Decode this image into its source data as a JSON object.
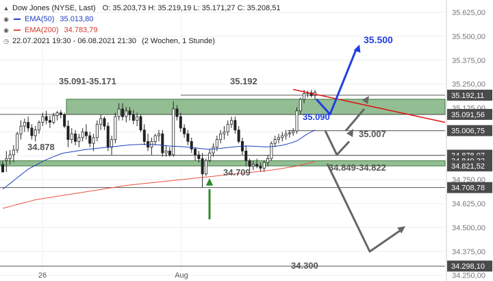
{
  "header": {
    "instrument_label": "Dow Jones (NYSE, Last)",
    "ohlc_label": "O: 35.203,73  H: 35.219,19  L: 35.171,27  C: 35.208,51",
    "ema50_label": "EMA(50)",
    "ema50_value": "35.013,80",
    "ema200_label": "EMA(200)",
    "ema200_value": "34.783,79",
    "range_label": "22.07.2021 19:30 - 06.08.2021 21:30",
    "period_label": "(2 Wochen, 1 Stunde)"
  },
  "colors": {
    "ema50": "#1f3fbf",
    "ema200": "#e8513f",
    "zone_fill": "#6fa86f",
    "trend_line": "#e01010",
    "forecast_up": "#1f3fe0",
    "forecast_grey": "#666666",
    "arrow_green": "#2e8b2e"
  },
  "chart_data": {
    "type": "candlestick",
    "x_tick_labels": [
      "26",
      "Aug"
    ],
    "y_tick_labels": [
      "35.625,00",
      "35.500,00",
      "35.375,00",
      "35.250,00",
      "35.125,00",
      "35.000,00",
      "34.875,00",
      "34.750,00",
      "34.625,00",
      "34.500,00",
      "34.375,00",
      "34.250,00"
    ],
    "y_range": [
      34220,
      35690
    ],
    "price_tags": [
      {
        "value": 35192.11,
        "text": "35.192,11"
      },
      {
        "value": 35091.56,
        "text": "35.091,56"
      },
      {
        "value": 35006.75,
        "text": "35.006,75"
      },
      {
        "value": 34878.07,
        "text": "34.878,07"
      },
      {
        "value": 34849,
        "text": "34.849,32"
      },
      {
        "value": 34822,
        "text": "34.821,52"
      },
      {
        "value": 34708.78,
        "text": "34.708,78"
      },
      {
        "value": 34298.1,
        "text": "34.298,10"
      }
    ],
    "zones": [
      {
        "label": "35.091-35.171",
        "low": 35091,
        "high": 35171
      },
      {
        "label": "34.849-34.822",
        "low": 34822,
        "high": 34849
      }
    ],
    "level_labels": [
      "35.192",
      "34.878",
      "34.709",
      "35.090",
      "35.007",
      "35.500",
      "34.300"
    ],
    "candles": [
      [
        34830,
        34850,
        34800,
        34790
      ],
      [
        34850,
        34900,
        34790,
        34860
      ],
      [
        34860,
        34905,
        34830,
        34880
      ],
      [
        34880,
        34930,
        34840,
        34905
      ],
      [
        34905,
        35000,
        34890,
        34990
      ],
      [
        34990,
        35060,
        34960,
        35030
      ],
      [
        35030,
        35070,
        35000,
        35050
      ],
      [
        35050,
        35080,
        35000,
        35020
      ],
      [
        35020,
        35040,
        34960,
        34980
      ],
      [
        34980,
        35030,
        34950,
        35010
      ],
      [
        35010,
        35060,
        34990,
        35050
      ],
      [
        35050,
        35100,
        35030,
        35080
      ],
      [
        35080,
        35110,
        35040,
        35060
      ],
      [
        35060,
        35085,
        35020,
        35050
      ],
      [
        35050,
        35100,
        35040,
        35085
      ],
      [
        35085,
        35110,
        35060,
        35100
      ],
      [
        35100,
        35115,
        35070,
        35090
      ],
      [
        35090,
        35100,
        35020,
        35030
      ],
      [
        35030,
        35060,
        34920,
        34960
      ],
      [
        34960,
        35020,
        34940,
        34990
      ],
      [
        34990,
        35010,
        34930,
        34950
      ],
      [
        34950,
        34990,
        34920,
        34970
      ],
      [
        34970,
        35020,
        34950,
        35000
      ],
      [
        35000,
        35040,
        34960,
        34980
      ],
      [
        34980,
        35000,
        34920,
        34940
      ],
      [
        34940,
        34990,
        34900,
        34970
      ],
      [
        34970,
        35060,
        34950,
        35040
      ],
      [
        35040,
        35090,
        35010,
        35070
      ],
      [
        35070,
        35080,
        35010,
        35030
      ],
      [
        35030,
        35050,
        34900,
        34920
      ],
      [
        34920,
        34980,
        34880,
        34960
      ],
      [
        34960,
        35100,
        34940,
        35080
      ],
      [
        35080,
        35150,
        35060,
        35120
      ],
      [
        35120,
        35150,
        35060,
        35080
      ],
      [
        35080,
        35130,
        35050,
        35110
      ],
      [
        35110,
        35130,
        35060,
        35090
      ],
      [
        35090,
        35115,
        35040,
        35060
      ],
      [
        35060,
        35100,
        35030,
        35080
      ],
      [
        35080,
        35090,
        35000,
        35010
      ],
      [
        35010,
        35040,
        34930,
        34950
      ],
      [
        34950,
        34990,
        34900,
        34920
      ],
      [
        34920,
        34970,
        34880,
        34950
      ],
      [
        34950,
        34990,
        34930,
        34980
      ],
      [
        34980,
        35010,
        34950,
        34990
      ],
      [
        34990,
        35010,
        34870,
        34890
      ],
      [
        34890,
        34930,
        34870,
        34900
      ],
      [
        34900,
        34920,
        34870,
        34880
      ],
      [
        34880,
        35160,
        34870,
        35120
      ],
      [
        35120,
        35140,
        35060,
        35080
      ],
      [
        35080,
        35100,
        35000,
        35020
      ],
      [
        35020,
        35040,
        34970,
        34990
      ],
      [
        34990,
        35010,
        34930,
        34950
      ],
      [
        34950,
        34970,
        34890,
        34910
      ],
      [
        34910,
        34920,
        34850,
        34880
      ],
      [
        34880,
        34900,
        34840,
        34860
      ],
      [
        34860,
        34890,
        34710,
        34780
      ],
      [
        34780,
        34860,
        34770,
        34850
      ],
      [
        34850,
        34910,
        34840,
        34890
      ],
      [
        34890,
        34940,
        34870,
        34920
      ],
      [
        34920,
        34980,
        34900,
        34960
      ],
      [
        34960,
        35010,
        34940,
        34990
      ],
      [
        34990,
        35030,
        34960,
        35000
      ],
      [
        35000,
        35060,
        34980,
        35040
      ],
      [
        35040,
        35080,
        35020,
        35060
      ],
      [
        35060,
        35080,
        34990,
        35010
      ],
      [
        35010,
        35030,
        34940,
        34950
      ],
      [
        34950,
        34970,
        34880,
        34900
      ],
      [
        34900,
        34930,
        34820,
        34850
      ],
      [
        34850,
        34860,
        34800,
        34820
      ],
      [
        34820,
        34850,
        34800,
        34830
      ],
      [
        34830,
        34860,
        34810,
        34820
      ],
      [
        34820,
        34840,
        34790,
        34810
      ],
      [
        34810,
        34850,
        34790,
        34840
      ],
      [
        34840,
        34880,
        34820,
        34860
      ],
      [
        34860,
        34950,
        34850,
        34940
      ],
      [
        34940,
        34980,
        34920,
        34960
      ],
      [
        34960,
        34990,
        34940,
        34970
      ],
      [
        34970,
        35000,
        34950,
        34980
      ],
      [
        34980,
        35010,
        34960,
        34990
      ],
      [
        34990,
        35010,
        34970,
        34995
      ],
      [
        34995,
        35020,
        34980,
        35005
      ],
      [
        35005,
        35130,
        34990,
        35110
      ],
      [
        35110,
        35180,
        35090,
        35170
      ],
      [
        35170,
        35220,
        35150,
        35200
      ],
      [
        35200,
        35215,
        35180,
        35205
      ],
      [
        35205,
        35220,
        35180,
        35190
      ],
      [
        35190,
        35219,
        35171,
        35208
      ]
    ],
    "ema50": [
      34700,
      34715,
      34730,
      34745,
      34760,
      34775,
      34790,
      34805,
      34815,
      34825,
      34835,
      34845,
      34855,
      34862,
      34870,
      34878,
      34885,
      34890,
      34893,
      34896,
      34899,
      34902,
      34905,
      34908,
      34910,
      34912,
      34914,
      34916,
      34918,
      34920,
      34922,
      34924,
      34926,
      34928,
      34930,
      34932,
      34933,
      34934,
      34935,
      34935,
      34935,
      34934,
      34933,
      34932,
      34930,
      34928,
      34926,
      34925,
      34924,
      34923,
      34922,
      34920,
      34918,
      34916,
      34914,
      34912,
      34910,
      34910,
      34911,
      34912,
      34914,
      34916,
      34918,
      34920,
      34922,
      34924,
      34925,
      34926,
      34926,
      34925,
      34924,
      34923,
      34922,
      34922,
      34923,
      34925,
      34927,
      34930,
      34935,
      34940,
      34946,
      34953,
      34965,
      34978,
      34990,
      35000,
      35010
    ],
    "ema200": [
      34600,
      34605,
      34610,
      34615,
      34620,
      34625,
      34630,
      34635,
      34640,
      34645,
      34648,
      34651,
      34654,
      34657,
      34660,
      34663,
      34666,
      34669,
      34672,
      34675,
      34678,
      34681,
      34684,
      34687,
      34690,
      34693,
      34696,
      34699,
      34702,
      34705,
      34708,
      34711,
      34714,
      34717,
      34720,
      34722,
      34724,
      34726,
      34728,
      34730,
      34732,
      34734,
      34736,
      34738,
      34740,
      34742,
      34744,
      34746,
      34748,
      34750,
      34752,
      34754,
      34756,
      34758,
      34760,
      34762,
      34764,
      34766,
      34768,
      34770,
      34772,
      34774,
      34776,
      34778,
      34780,
      34782,
      34784,
      34786,
      34788,
      34790,
      34792,
      34794,
      34796,
      34798,
      34800,
      34803,
      34806,
      34809,
      34812,
      34815,
      34818,
      34821,
      34826,
      34830,
      34835,
      34840,
      34845
    ]
  }
}
